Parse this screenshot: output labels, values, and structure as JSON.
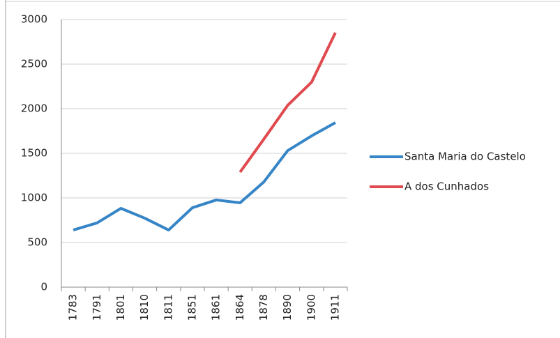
{
  "chart_data": {
    "type": "line",
    "categories": [
      "1783",
      "1791",
      "1801",
      "1810",
      "1811",
      "1851",
      "1861",
      "1864",
      "1878",
      "1890",
      "1900",
      "1911"
    ],
    "series": [
      {
        "name": "Santa Maria do Castelo",
        "color": "#3685c6",
        "values": [
          640,
          720,
          883,
          773,
          640,
          890,
          977,
          945,
          1180,
          1531,
          1695,
          1844
        ]
      },
      {
        "name": "A dos Cunhados",
        "color": "#e0494e",
        "values": [
          null,
          null,
          null,
          null,
          null,
          null,
          null,
          1289,
          1660,
          2039,
          2297,
          2852
        ]
      }
    ],
    "ylim": [
      0,
      3000
    ],
    "yticks": [
      0,
      500,
      1000,
      1500,
      2000,
      2500,
      3000
    ],
    "grid": true,
    "legend": "right"
  }
}
